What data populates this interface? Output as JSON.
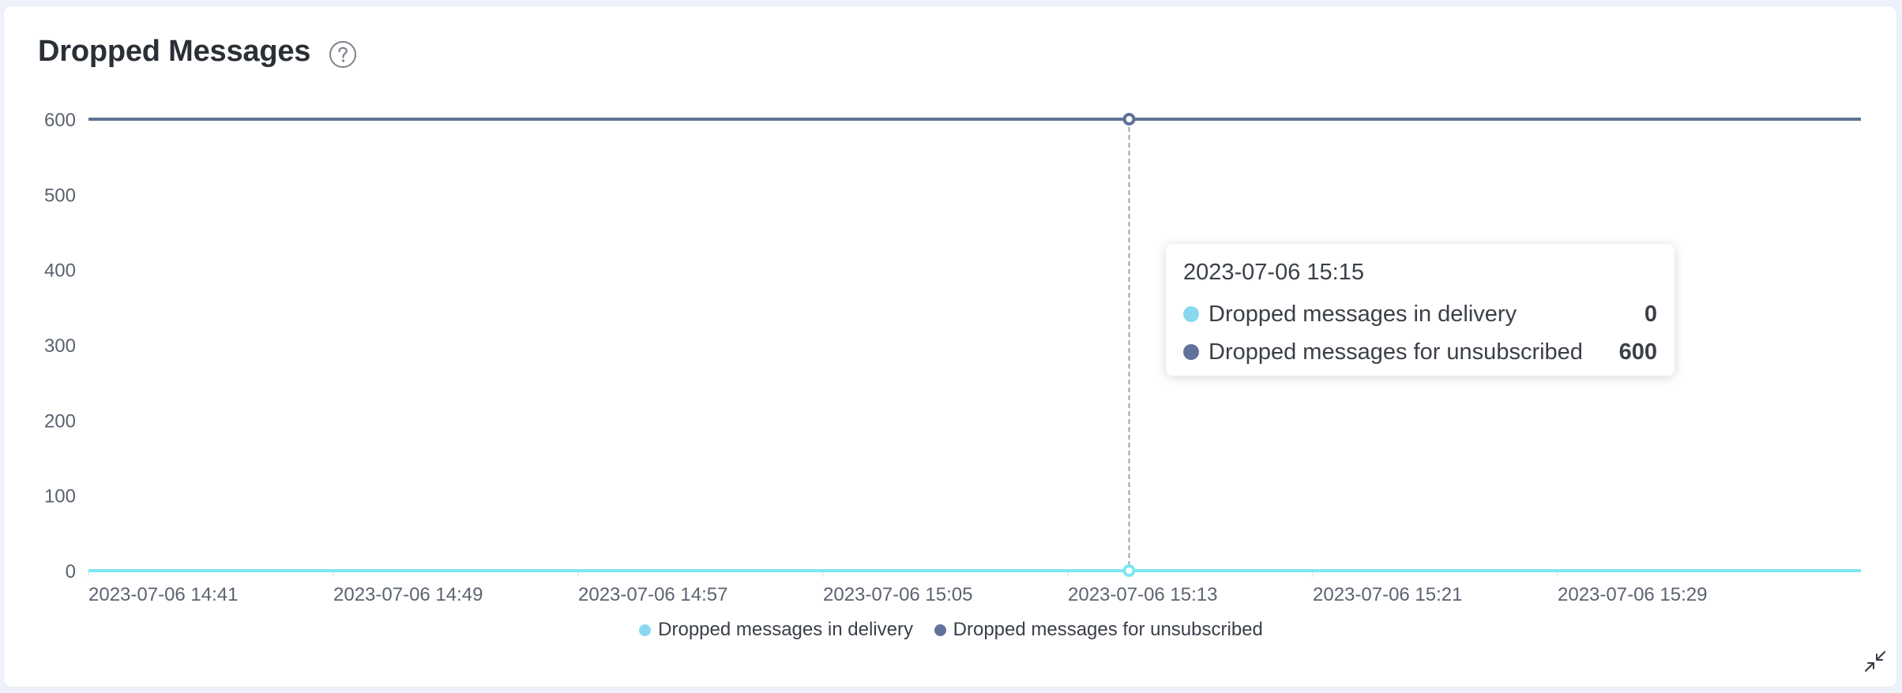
{
  "panel": {
    "title": "Dropped Messages"
  },
  "icons": {
    "help": "question-circle-icon",
    "expand": "compress-arrows-icon"
  },
  "colors": {
    "series_delivery": "#8ad8ef",
    "series_unsubscribed": "#61739b",
    "line_delivery": "#7fe6f0",
    "line_unsubscribed": "#5f7195"
  },
  "tooltip": {
    "time": "2023-07-06 15:15",
    "rows": [
      {
        "label": "Dropped messages in delivery",
        "value": "0"
      },
      {
        "label": "Dropped messages for unsubscribed",
        "value": "600"
      }
    ]
  },
  "chart_data": {
    "type": "line",
    "x_tick_labels": [
      "2023-07-06 14:41",
      "2023-07-06 14:49",
      "2023-07-06 14:57",
      "2023-07-06 15:05",
      "2023-07-06 15:13",
      "2023-07-06 15:21",
      "2023-07-06 15:29"
    ],
    "y_ticks": [
      0,
      100,
      200,
      300,
      400,
      500,
      600
    ],
    "ylim": [
      0,
      600
    ],
    "x_range": [
      "2023-07-06 14:41",
      "2023-07-06 15:36"
    ],
    "series": [
      {
        "name": "Dropped messages in delivery",
        "values": [
          0,
          0,
          0,
          0,
          0,
          0,
          0,
          0
        ]
      },
      {
        "name": "Dropped messages for unsubscribed",
        "values": [
          600,
          600,
          600,
          600,
          600,
          600,
          600,
          600
        ]
      }
    ],
    "highlighted_x": "2023-07-06 15:15",
    "legend": {
      "position": "bottom-center",
      "items": [
        "Dropped messages in delivery",
        "Dropped messages for unsubscribed"
      ]
    },
    "grid": false
  }
}
